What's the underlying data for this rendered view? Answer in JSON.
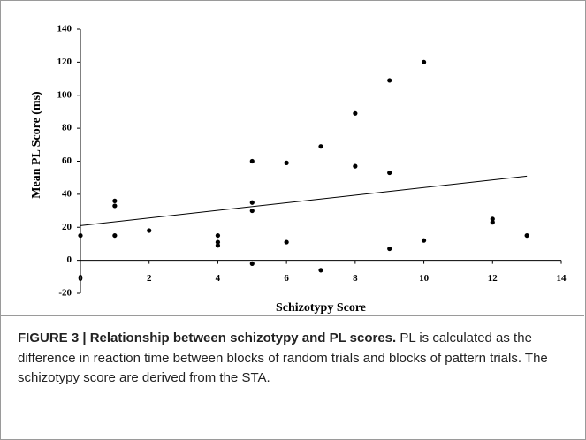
{
  "chart_data": {
    "type": "scatter",
    "xlabel": "Schizotypy Score",
    "ylabel": "Mean PL Score (ms)",
    "x": [
      0,
      1,
      1,
      1,
      2,
      4,
      4,
      4,
      5,
      5,
      5,
      5,
      6,
      6,
      7,
      7,
      8,
      8,
      9,
      9,
      9,
      10,
      10,
      12,
      12,
      13
    ],
    "values": [
      15,
      36,
      33,
      15,
      18,
      15,
      11,
      9,
      60,
      35,
      30,
      -2,
      59,
      11,
      69,
      -6,
      89,
      57,
      109,
      53,
      7,
      120,
      12,
      25,
      23,
      15
    ],
    "color": "#000000",
    "trendline": {
      "x": [
        0,
        13
      ],
      "y": [
        21,
        51
      ]
    },
    "xlim": [
      0,
      14
    ],
    "xticks": [
      0,
      2,
      4,
      6,
      8,
      10,
      12,
      14
    ],
    "ylim": [
      -20,
      140
    ],
    "yticks": [
      -20,
      0,
      20,
      40,
      60,
      80,
      100,
      120,
      140
    ]
  },
  "caption": {
    "label": "FIGURE 3 | Relationship between schizotypy and PL scores.",
    "text": "PL is calculated as the difference in reaction time between blocks of random trials and blocks of pattern trials. The schizotypy score are derived from the STA."
  }
}
